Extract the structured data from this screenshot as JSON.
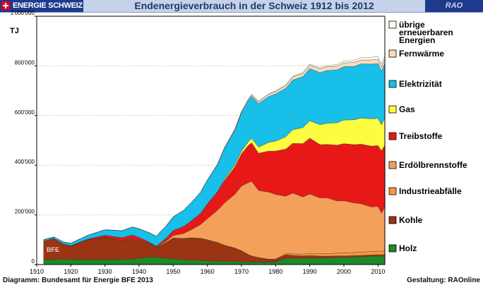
{
  "header": {
    "badge": "ENERGIE SCHWEIZ",
    "title": "Endenergieverbrauch in der Schweiz  1912 bis 2012",
    "right": "RAO"
  },
  "footer": {
    "left": "Diagramm: Bundesamt für Energie BFE 2013",
    "right": "Gestaltung: RAOnline"
  },
  "watermark": "BFE",
  "chart_data": {
    "type": "area",
    "stacked": true,
    "ylabel": "TJ",
    "xlim": [
      1910,
      2012
    ],
    "ylim": [
      0,
      1000000
    ],
    "yticks": [
      0,
      200000,
      400000,
      600000,
      800000,
      1000000
    ],
    "ytick_labels": [
      "0",
      "200'000",
      "400'000",
      "600'000",
      "800'000",
      "1'000'000"
    ],
    "xticks": [
      1910,
      1920,
      1930,
      1940,
      1950,
      1960,
      1970,
      1980,
      1990,
      2000,
      2010
    ],
    "xtick_labels": [
      "1910",
      "1920",
      "1930",
      "1940",
      "1950",
      "1960",
      "1970",
      "1980",
      "1990",
      "2000",
      "2010"
    ],
    "x": [
      1912,
      1915,
      1918,
      1920,
      1925,
      1930,
      1935,
      1938,
      1940,
      1943,
      1945,
      1948,
      1950,
      1953,
      1955,
      1958,
      1960,
      1963,
      1965,
      1968,
      1970,
      1972,
      1973,
      1975,
      1978,
      1980,
      1983,
      1985,
      1988,
      1990,
      1993,
      1995,
      1998,
      2000,
      2003,
      2005,
      2008,
      2010,
      2011,
      2012
    ],
    "legend_position": "right",
    "series": [
      {
        "name": "Holz",
        "color": "#1c8a28",
        "values": [
          20000,
          20000,
          22000,
          20000,
          20000,
          20000,
          20000,
          22000,
          25000,
          30000,
          30000,
          25000,
          22000,
          20000,
          18000,
          16000,
          15000,
          14000,
          13000,
          12000,
          11000,
          10000,
          10000,
          10000,
          10000,
          10000,
          25000,
          25000,
          25000,
          26000,
          26000,
          27000,
          28000,
          29000,
          30000,
          31000,
          33000,
          34000,
          33000,
          35000
        ]
      },
      {
        "name": "Kohle",
        "color": "#9a3412",
        "values": [
          75000,
          85000,
          60000,
          55000,
          80000,
          90000,
          75000,
          80000,
          70000,
          55000,
          40000,
          65000,
          85000,
          85000,
          90000,
          90000,
          85000,
          75000,
          65000,
          55000,
          45000,
          30000,
          25000,
          18000,
          12000,
          12000,
          15000,
          12000,
          10000,
          10000,
          8000,
          7000,
          7000,
          6000,
          6000,
          6000,
          6000,
          6000,
          6000,
          6000
        ]
      },
      {
        "name": "Industrieabfälle",
        "color": "#f79a3c",
        "values": [
          0,
          0,
          0,
          0,
          0,
          0,
          0,
          0,
          0,
          0,
          0,
          0,
          0,
          0,
          0,
          0,
          0,
          0,
          0,
          0,
          0,
          0,
          0,
          0,
          0,
          0,
          5000,
          6000,
          7000,
          8000,
          9000,
          10000,
          11000,
          12000,
          12000,
          13000,
          13000,
          14000,
          14000,
          15000
        ]
      },
      {
        "name": "Erdölbrennstoffe",
        "color": "#f5a05a",
        "values": [
          0,
          0,
          0,
          0,
          0,
          0,
          1000,
          2000,
          2000,
          1000,
          1000,
          5000,
          10000,
          20000,
          30000,
          55000,
          85000,
          130000,
          170000,
          215000,
          260000,
          290000,
          300000,
          270000,
          270000,
          260000,
          230000,
          245000,
          230000,
          240000,
          225000,
          225000,
          210000,
          210000,
          200000,
          195000,
          180000,
          180000,
          155000,
          175000
        ]
      },
      {
        "name": "Treibstoffe",
        "color": "#e61818",
        "values": [
          0,
          0,
          0,
          1000,
          3000,
          8000,
          12000,
          15000,
          12000,
          4000,
          3000,
          12000,
          20000,
          28000,
          35000,
          45000,
          60000,
          75000,
          90000,
          110000,
          130000,
          150000,
          155000,
          150000,
          165000,
          175000,
          190000,
          200000,
          215000,
          225000,
          215000,
          215000,
          225000,
          230000,
          235000,
          240000,
          245000,
          245000,
          250000,
          250000
        ]
      },
      {
        "name": "Gas",
        "color": "#fcfc40",
        "values": [
          0,
          0,
          0,
          0,
          0,
          0,
          0,
          0,
          0,
          0,
          0,
          0,
          0,
          0,
          0,
          0,
          0,
          0,
          5000,
          8000,
          10000,
          15000,
          18000,
          25000,
          35000,
          40000,
          50000,
          55000,
          65000,
          70000,
          80000,
          85000,
          90000,
          95000,
          100000,
          105000,
          110000,
          110000,
          105000,
          110000
        ]
      },
      {
        "name": "Elektrizität",
        "color": "#18bfe8",
        "values": [
          5000,
          6000,
          8000,
          10000,
          15000,
          22000,
          28000,
          32000,
          35000,
          38000,
          40000,
          50000,
          55000,
          65000,
          72000,
          85000,
          95000,
          110000,
          125000,
          140000,
          155000,
          165000,
          170000,
          175000,
          185000,
          190000,
          195000,
          200000,
          205000,
          210000,
          210000,
          212000,
          213000,
          215000,
          215000,
          218000,
          220000,
          220000,
          215000,
          220000
        ]
      },
      {
        "name": "Fernwärme",
        "color": "#fadcbc",
        "values": [
          0,
          0,
          0,
          0,
          0,
          0,
          0,
          0,
          0,
          0,
          0,
          0,
          0,
          0,
          0,
          0,
          0,
          1000,
          2000,
          3000,
          5000,
          6000,
          7000,
          8000,
          9000,
          10000,
          11000,
          12000,
          13000,
          14000,
          15000,
          15000,
          15000,
          15000,
          16000,
          16000,
          17000,
          17000,
          16000,
          17000
        ]
      },
      {
        "name": "übrige erneuerbaren Energien",
        "color": "#fffff0",
        "values": [
          0,
          0,
          0,
          0,
          0,
          0,
          0,
          0,
          0,
          0,
          0,
          0,
          0,
          0,
          0,
          0,
          0,
          0,
          0,
          0,
          0,
          0,
          0,
          1000,
          2000,
          2000,
          3000,
          3000,
          4000,
          4000,
          5000,
          5000,
          6000,
          7000,
          8000,
          9000,
          11000,
          12000,
          12000,
          13000
        ]
      }
    ]
  }
}
